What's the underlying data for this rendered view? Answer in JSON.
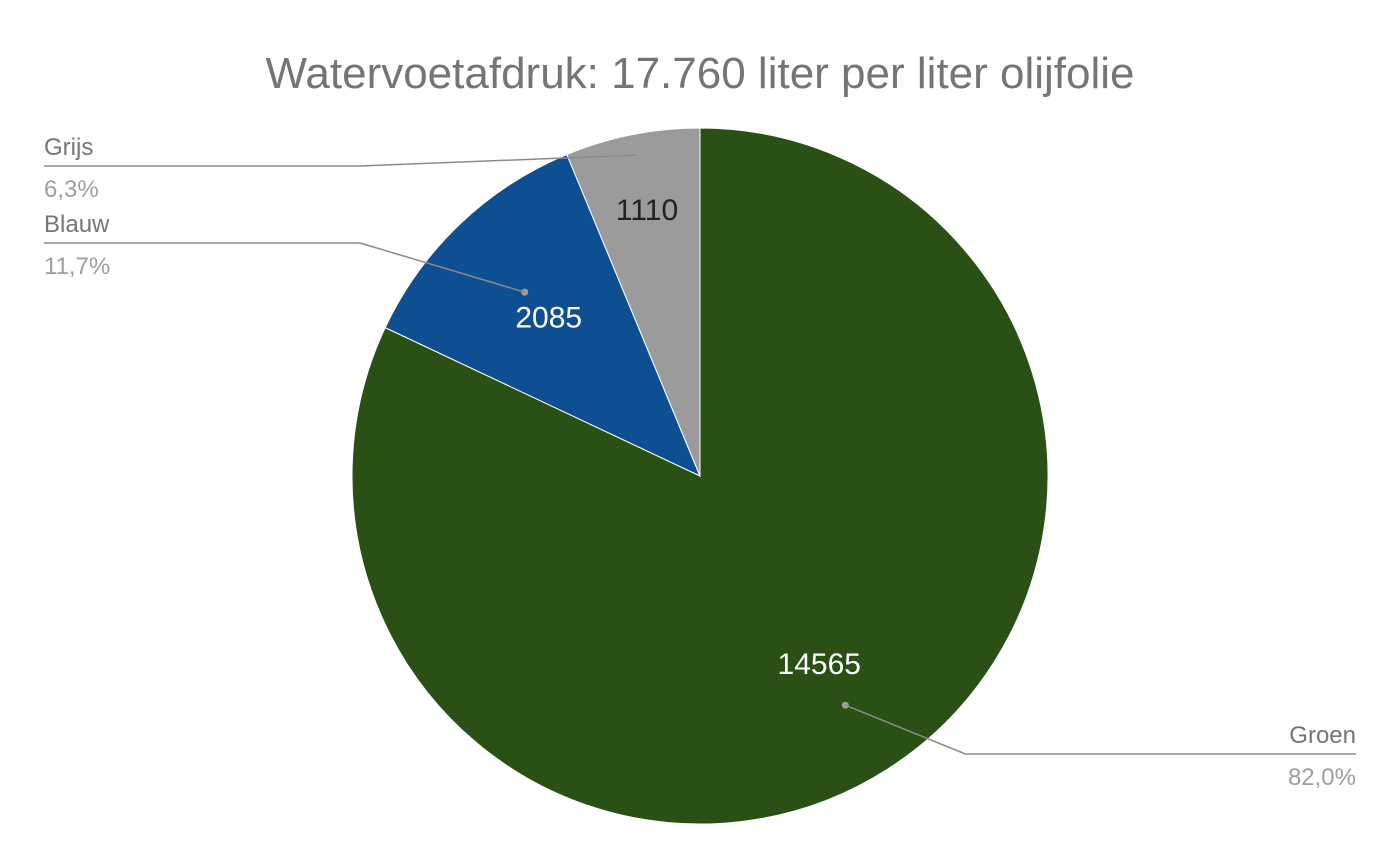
{
  "chart_data": {
    "type": "pie",
    "title": "Watervoetafdruk: 17.760 liter per liter olijfolie",
    "slices": [
      {
        "name": "Groen",
        "value": 14565,
        "value_label": "14565",
        "percent_label": "82,0%",
        "color": "#2a5016",
        "label_color": "#ffffff"
      },
      {
        "name": "Blauw",
        "value": 2085,
        "value_label": "2085",
        "percent_label": "11,7%",
        "color": "#0e4f92",
        "label_color": "#ffffff"
      },
      {
        "name": "Grijs",
        "value": 1110,
        "value_label": "1110",
        "percent_label": "6,3%",
        "color": "#9b9b9b",
        "label_color": "#212121"
      }
    ],
    "start_angle_deg": 0,
    "direction": "clockwise",
    "legend": "callouts"
  }
}
